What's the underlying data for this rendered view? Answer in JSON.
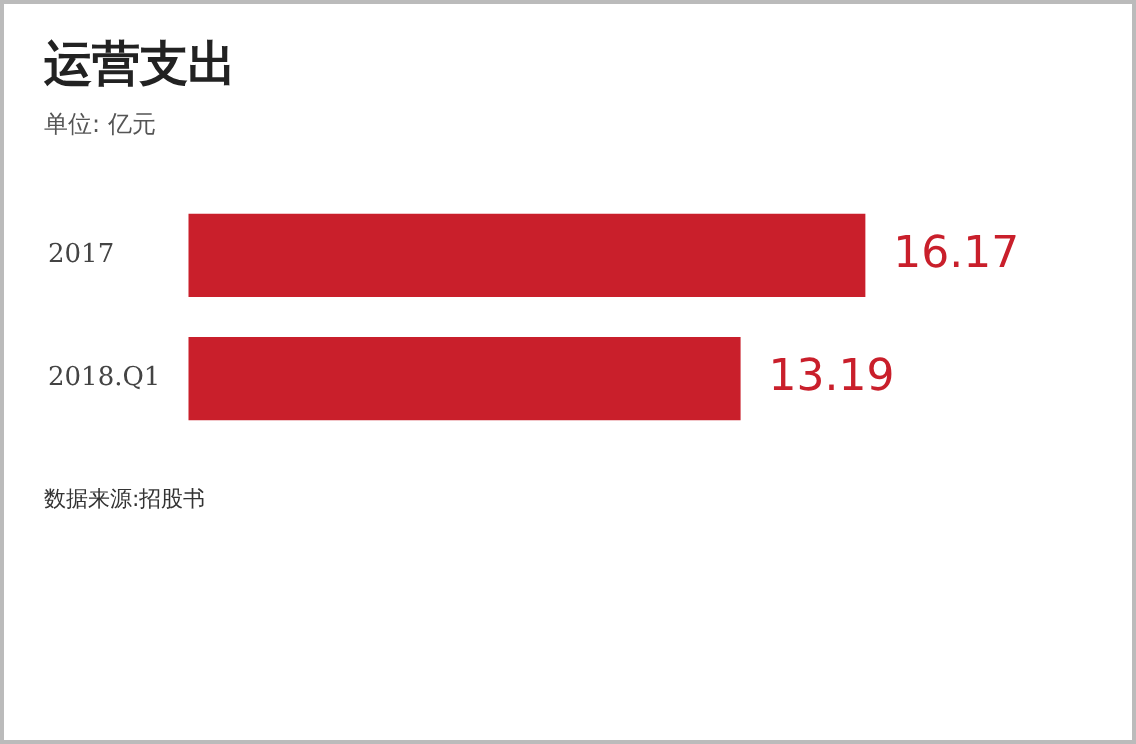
{
  "chart_data": {
    "type": "bar",
    "orientation": "horizontal",
    "title": "运营支出",
    "subtitle": "单位: 亿元",
    "categories": [
      "2017",
      "2018.Q1"
    ],
    "values": [
      16.17,
      13.19
    ],
    "color": "#c91f2b",
    "data_labels": true,
    "annotations": [
      "数据来源:招股书"
    ]
  }
}
